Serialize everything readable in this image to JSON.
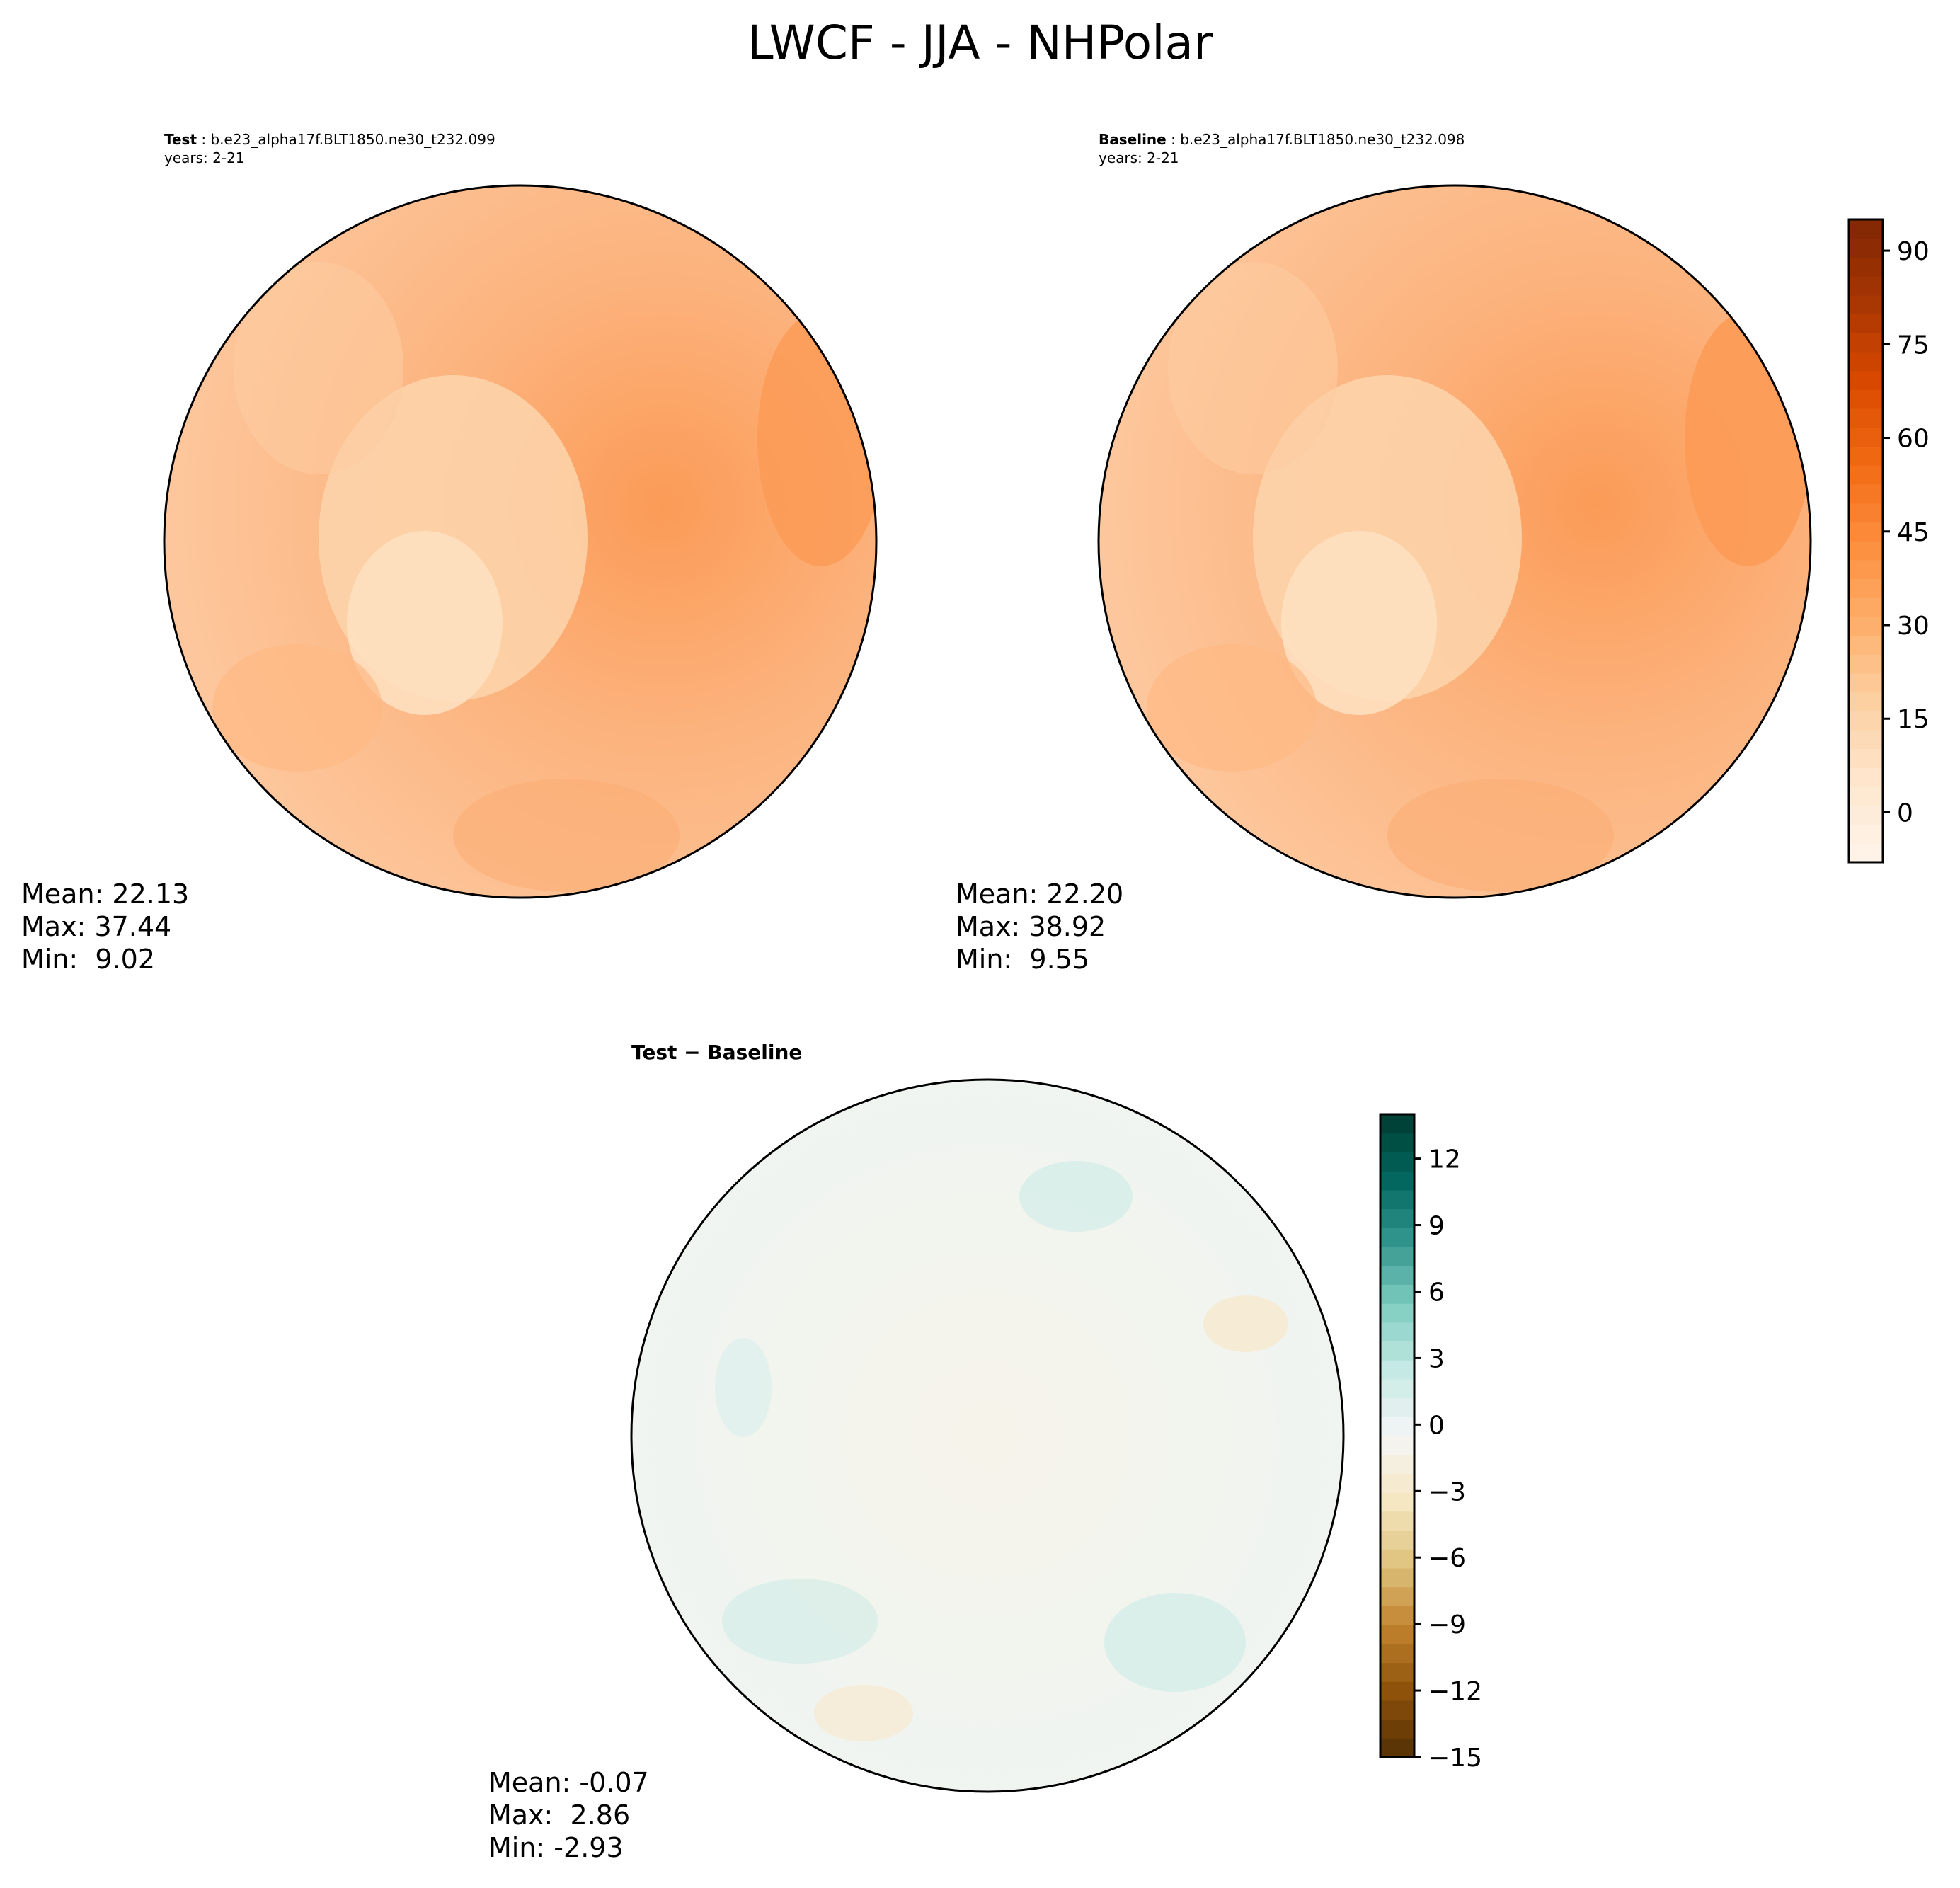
{
  "figure": {
    "title": "LWCF - JJA - NHPolar"
  },
  "panels": [
    {
      "label": "Test",
      "case": " : b.e23_alpha17f.BLT1850.ne30_t232.099",
      "years": "years: 2-21",
      "stats": {
        "mean": "Mean: 22.13",
        "max": "Max: 37.44",
        "min": "Min:  9.02"
      }
    },
    {
      "label": "Baseline",
      "case": " : b.e23_alpha17f.BLT1850.ne30_t232.098",
      "years": "years: 2-21",
      "stats": {
        "mean": "Mean: 22.20",
        "max": "Max: 38.92",
        "min": "Min:  9.55"
      }
    },
    {
      "label": "Test − Baseline",
      "stats": {
        "mean": "Mean: -0.07",
        "max": "Max:  2.86",
        "min": "Min: -2.93"
      }
    }
  ],
  "chart_data": [
    {
      "type": "heatmap",
      "projection": "north polar stereographic",
      "colorbar": {
        "range": [
          -8,
          95
        ],
        "ticks": [
          0,
          15,
          30,
          45,
          60,
          75,
          90
        ],
        "tick_labels": [
          "0",
          "15",
          "30",
          "45",
          "60",
          "75",
          "90"
        ],
        "colors": [
          "#fff5eb",
          "#fee6ce",
          "#fdd0a2",
          "#fdae6b",
          "#fd8d3c",
          "#f16913",
          "#d94801",
          "#a63603",
          "#7f2704"
        ]
      }
    },
    {
      "type": "heatmap",
      "projection": "north polar stereographic",
      "colorbar": {
        "range": [
          -15,
          14
        ],
        "ticks": [
          -15,
          -12,
          -9,
          -6,
          -3,
          0,
          3,
          6,
          9,
          12
        ],
        "tick_labels": [
          "−15",
          "−12",
          "−9",
          "−6",
          "−3",
          "0",
          "3",
          "6",
          "9",
          "12"
        ],
        "colors": [
          "#543005",
          "#8c510a",
          "#bf812d",
          "#dfc27d",
          "#f6e8c3",
          "#f5f5f5",
          "#c7eae5",
          "#80cdc1",
          "#35978f",
          "#01665e",
          "#003c30"
        ]
      }
    }
  ]
}
